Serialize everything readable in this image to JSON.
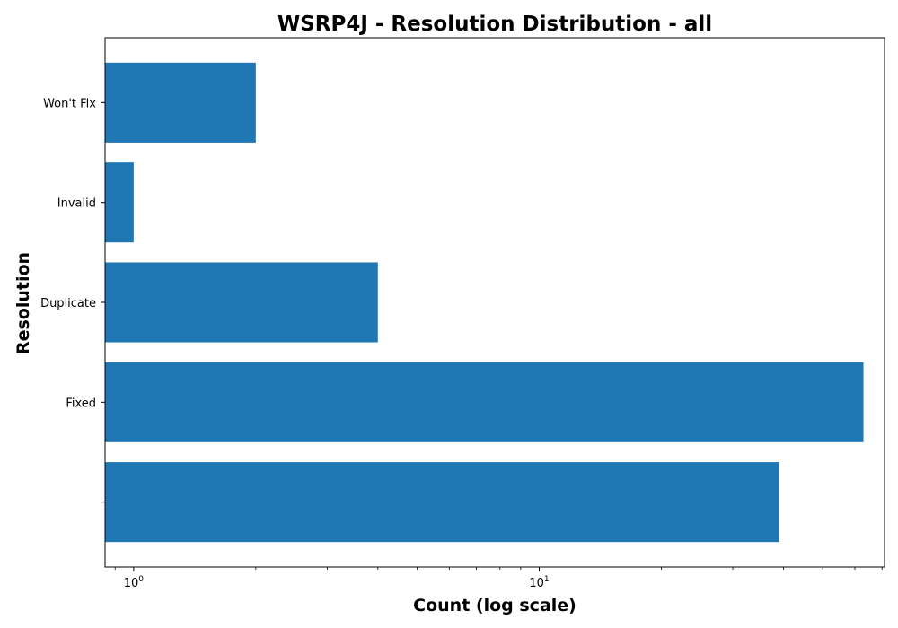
{
  "chart_data": {
    "type": "bar",
    "orientation": "horizontal",
    "title": "WSRP4J - Resolution Distribution - all",
    "xlabel": "Count (log scale)",
    "ylabel": "Resolution",
    "x_scale": "log",
    "xlim": [
      0.85,
      71
    ],
    "categories": [
      "",
      "Fixed",
      "Duplicate",
      "Invalid",
      "Won't Fix"
    ],
    "values": [
      39,
      63,
      4,
      1,
      2
    ],
    "x_ticks": [
      {
        "base": "10",
        "exp": "0",
        "value": 1
      },
      {
        "base": "10",
        "exp": "1",
        "value": 10
      }
    ],
    "bar_color": "#1f77b4",
    "grid": false,
    "legend": "none"
  }
}
